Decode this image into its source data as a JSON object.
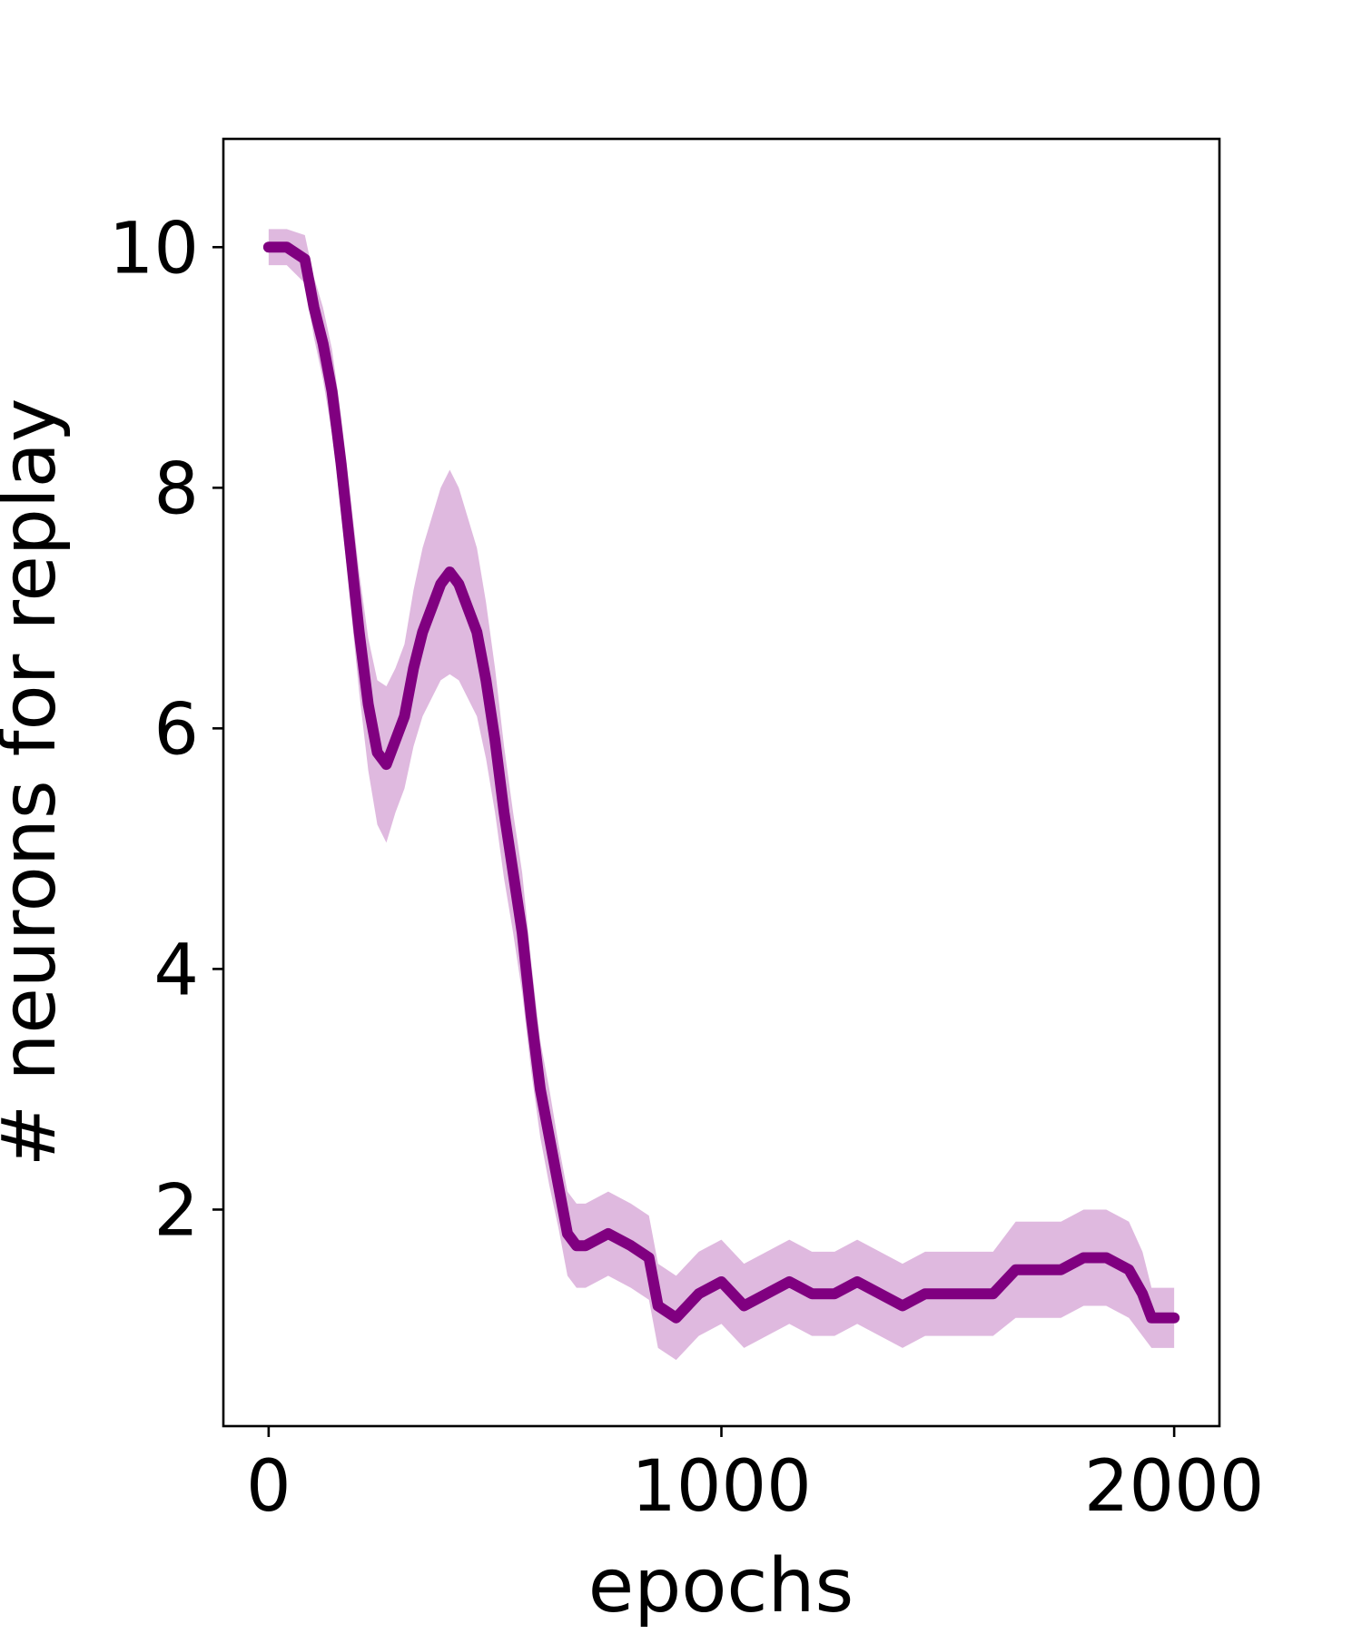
{
  "chart_data": {
    "type": "line",
    "title": "",
    "xlabel": "epochs",
    "ylabel": "# neurons for replay",
    "xlim": [
      -100,
      2100
    ],
    "ylim": [
      0.2,
      10.9
    ],
    "x_ticks": [
      0,
      1000,
      2000
    ],
    "x_tick_labels": [
      "0",
      "1000",
      "2000"
    ],
    "y_ticks": [
      2,
      4,
      6,
      8,
      10
    ],
    "y_tick_labels": [
      "2",
      "4",
      "6",
      "8",
      "10"
    ],
    "grid": false,
    "legend": "none",
    "colors": {
      "line": "#800080",
      "band": "#c98bc9"
    },
    "series": [
      {
        "x": [
          0,
          40,
          80,
          100,
          120,
          140,
          160,
          180,
          200,
          220,
          240,
          260,
          280,
          300,
          320,
          340,
          360,
          380,
          400,
          420,
          440,
          460,
          480,
          500,
          520,
          540,
          560,
          580,
          600,
          620,
          640,
          660,
          680,
          700,
          750,
          800,
          840,
          860,
          900,
          950,
          1000,
          1050,
          1100,
          1150,
          1200,
          1250,
          1300,
          1350,
          1400,
          1450,
          1500,
          1550,
          1600,
          1650,
          1700,
          1750,
          1800,
          1850,
          1900,
          1930,
          1950,
          2000
        ],
        "values": [
          10.0,
          10.0,
          9.9,
          9.5,
          9.2,
          8.8,
          8.2,
          7.5,
          6.8,
          6.2,
          5.8,
          5.7,
          5.9,
          6.1,
          6.5,
          6.8,
          7.0,
          7.2,
          7.3,
          7.2,
          7.0,
          6.8,
          6.4,
          5.9,
          5.3,
          4.8,
          4.3,
          3.6,
          3.0,
          2.6,
          2.2,
          1.8,
          1.7,
          1.7,
          1.8,
          1.7,
          1.6,
          1.2,
          1.1,
          1.3,
          1.4,
          1.2,
          1.3,
          1.4,
          1.3,
          1.3,
          1.4,
          1.3,
          1.2,
          1.3,
          1.3,
          1.3,
          1.3,
          1.5,
          1.5,
          1.5,
          1.6,
          1.6,
          1.5,
          1.3,
          1.1,
          1.1
        ],
        "band_halfwidth": [
          0.15,
          0.15,
          0.2,
          0.25,
          0.3,
          0.35,
          0.4,
          0.45,
          0.5,
          0.55,
          0.6,
          0.65,
          0.6,
          0.6,
          0.65,
          0.7,
          0.75,
          0.8,
          0.85,
          0.8,
          0.75,
          0.7,
          0.65,
          0.6,
          0.55,
          0.5,
          0.5,
          0.45,
          0.4,
          0.4,
          0.35,
          0.35,
          0.35,
          0.35,
          0.35,
          0.35,
          0.35,
          0.35,
          0.35,
          0.35,
          0.35,
          0.35,
          0.35,
          0.35,
          0.35,
          0.35,
          0.35,
          0.35,
          0.35,
          0.35,
          0.35,
          0.35,
          0.35,
          0.4,
          0.4,
          0.4,
          0.4,
          0.4,
          0.4,
          0.35,
          0.25,
          0.25
        ]
      }
    ]
  }
}
